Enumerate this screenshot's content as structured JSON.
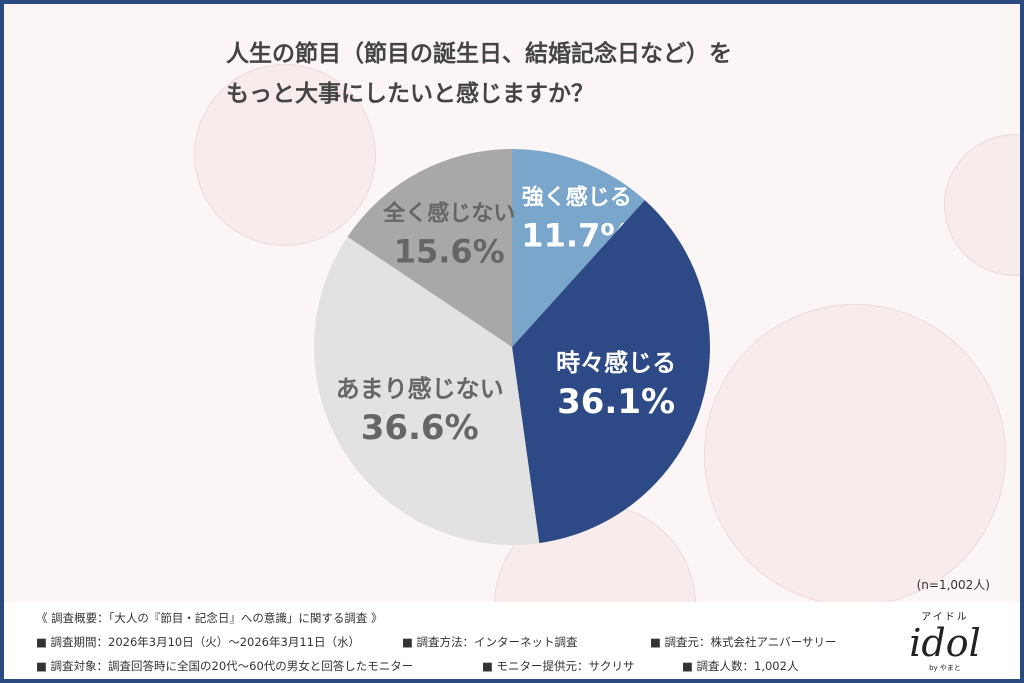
{
  "chart_data": {
    "type": "pie",
    "title": "人生の節目（節目の誕生日、結婚記念日など）を\nもっと大事にしたいと感じますか？",
    "title_lines": [
      "人生の節目（節目の誕生日、結婚記念日など）を",
      "もっと大事にしたいと感じますか？"
    ],
    "start": "top, clockwise",
    "slices": [
      {
        "label": "強く感じる",
        "value": 11.7,
        "display": "11.7%",
        "color": "#7ba6cc",
        "text_color": "#ffffff"
      },
      {
        "label": "時々感じる",
        "value": 36.1,
        "display": "36.1%",
        "color": "#2d4a86",
        "text_color": "#ffffff"
      },
      {
        "label": "あまり感じない",
        "value": 36.6,
        "display": "36.6%",
        "color": "#e2e2e2",
        "text_color": "#666666"
      },
      {
        "label": "全く感じない",
        "value": 15.6,
        "display": "15.6%",
        "color": "#a8a8a8",
        "text_color": "#666666"
      }
    ],
    "sample_note": "(n=1,002人)"
  },
  "footer": {
    "heading": "《 調査概要：「大人の『節目・記念日』への意識」に関する調査 》",
    "items": [
      "■ 調査期間：2026年3月10日（火）～2026年3月11日（水）",
      "■ 調査方法：インターネット調査",
      "■ 調査元：株式会社アニバーサリー",
      "■ 調査対象：調査回答時に全国の20代～60代の男女と回答したモニター",
      "■ モニター提供元：サクリサ",
      "■ 調査人数：1,002人"
    ]
  },
  "logo": {
    "kana": "アイドル",
    "word": "idol",
    "sub": "by やまと"
  },
  "colors": {
    "frame": "#2b4a80",
    "background": "#fbf6f5"
  }
}
